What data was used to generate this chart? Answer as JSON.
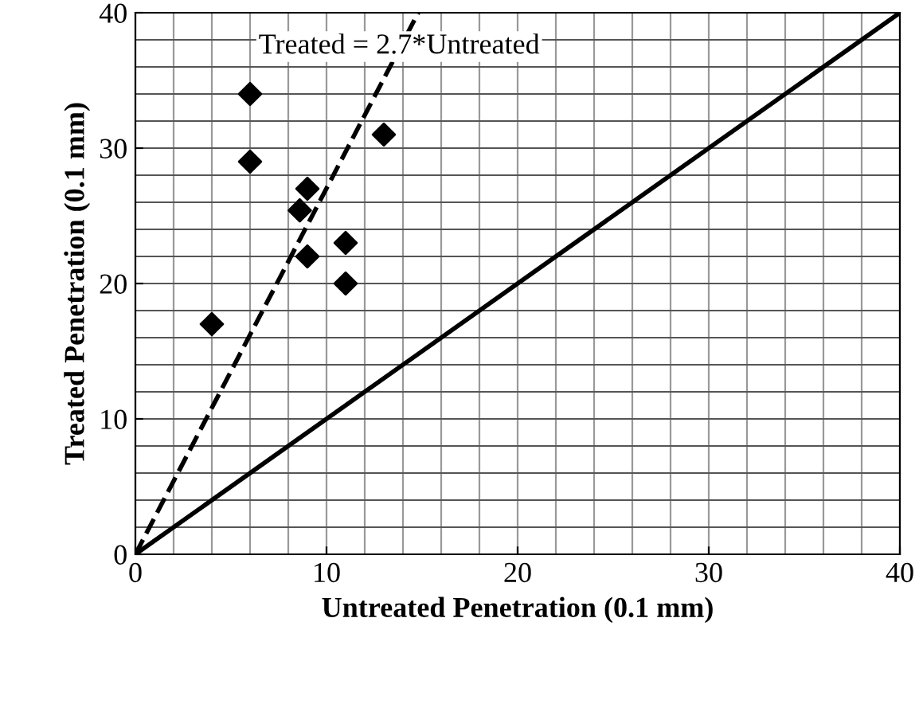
{
  "chart_data": {
    "type": "scatter",
    "xlabel": "Untreated Penetration (0.1 mm)",
    "ylabel": "Treated Penetration (0.1 mm)",
    "xlim": [
      0,
      40
    ],
    "ylim": [
      0,
      40
    ],
    "xticks": [
      0,
      10,
      20,
      30,
      40
    ],
    "yticks": [
      0,
      10,
      20,
      30,
      40
    ],
    "grid": true,
    "series": [
      {
        "marker": "diamond",
        "color": "#000000",
        "x": [
          4,
          6,
          6,
          9,
          8.6,
          9,
          11,
          11,
          13
        ],
        "values": [
          17,
          34,
          29,
          27,
          25.4,
          22,
          23,
          20,
          31
        ]
      },
      {
        "type": "line",
        "color": "#000000",
        "line_style": "dashed",
        "marker": "none",
        "x": [
          0,
          14.8
        ],
        "values": [
          0,
          40
        ]
      },
      {
        "type": "line",
        "color": "#000000",
        "line_style": "solid",
        "marker": "none",
        "x": [
          0,
          40
        ],
        "values": [
          0,
          40
        ]
      }
    ],
    "annotations": [
      {
        "text": "Treated = 2.7*Untreated",
        "x": 13.8,
        "y": 37.5
      }
    ]
  }
}
